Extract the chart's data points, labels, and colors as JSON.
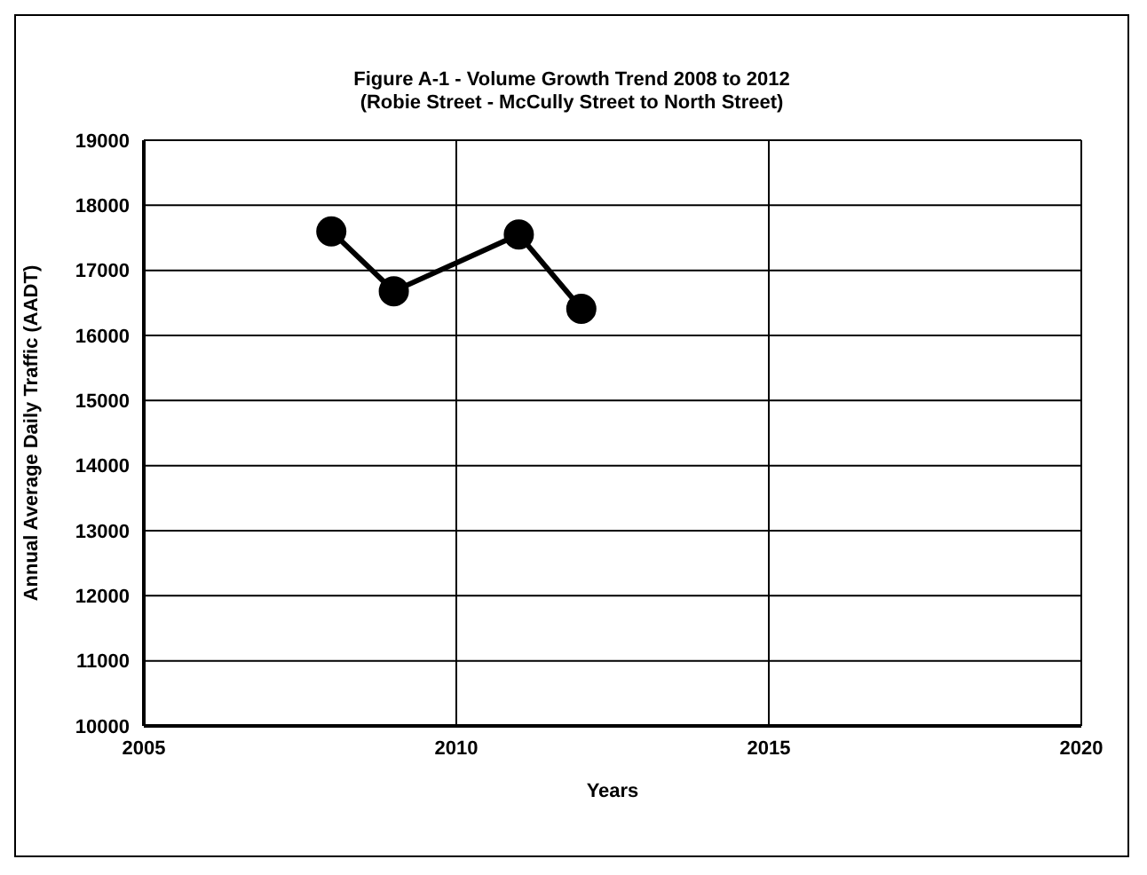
{
  "chart_data": {
    "type": "line",
    "title": "Figure A-1 - Volume Growth Trend 2008 to 2012",
    "subtitle": "(Robie Street - McCully Street to North Street)",
    "xlabel": "Years",
    "ylabel": "Annual Average Daily Traffic  (AADT)",
    "x": [
      2008,
      2009,
      2011,
      2012
    ],
    "series": [
      {
        "color": "#000000",
        "values": [
          17600,
          16680,
          17550,
          16410
        ]
      }
    ],
    "xlim": [
      2005,
      2020
    ],
    "xticks": [
      2005,
      2010,
      2015,
      2020
    ],
    "ylim": [
      10000,
      19000
    ],
    "yticks": [
      10000,
      11000,
      12000,
      13000,
      14000,
      15000,
      16000,
      17000,
      18000,
      19000
    ],
    "grid": true,
    "marker": "circle",
    "line_style": "solid"
  }
}
